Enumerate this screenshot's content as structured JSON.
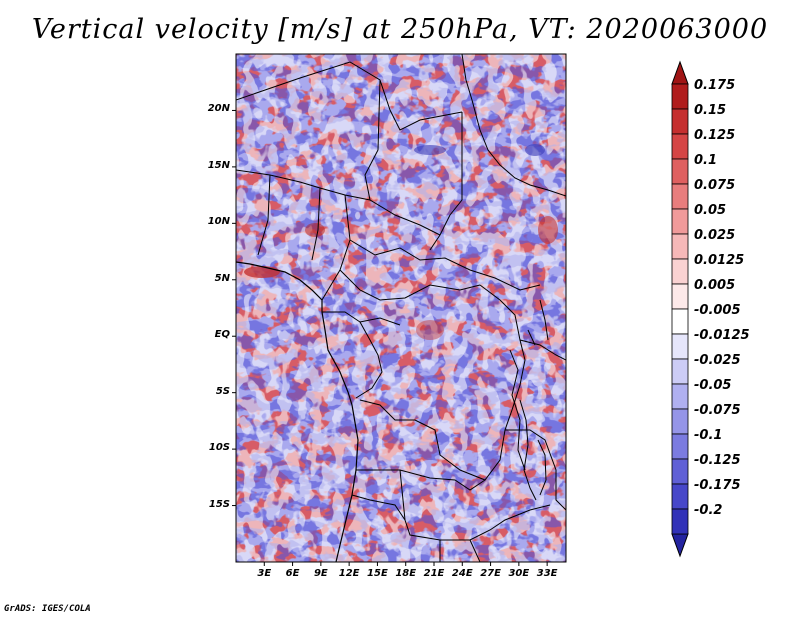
{
  "title": "Vertical velocity [m/s] at 250hPa, VT: 2020063000",
  "credit": "GrADS: IGES/COLA",
  "map": {
    "lon_range": [
      0,
      35
    ],
    "lat_range": [
      -20,
      25
    ],
    "lat_ticks": [
      {
        "value": 20,
        "label": "20N"
      },
      {
        "value": 15,
        "label": "15N"
      },
      {
        "value": 10,
        "label": "10N"
      },
      {
        "value": 5,
        "label": "5N"
      },
      {
        "value": 0,
        "label": "EQ"
      },
      {
        "value": -5,
        "label": "5S"
      },
      {
        "value": -10,
        "label": "10S"
      },
      {
        "value": -15,
        "label": "15S"
      }
    ],
    "lon_ticks": [
      {
        "value": 3,
        "label": "3E"
      },
      {
        "value": 6,
        "label": "6E"
      },
      {
        "value": 9,
        "label": "9E"
      },
      {
        "value": 12,
        "label": "12E"
      },
      {
        "value": 15,
        "label": "15E"
      },
      {
        "value": 18,
        "label": "18E"
      },
      {
        "value": 21,
        "label": "21E"
      },
      {
        "value": 24,
        "label": "24E"
      },
      {
        "value": 27,
        "label": "27E"
      },
      {
        "value": 30,
        "label": "30E"
      },
      {
        "value": 33,
        "label": "33E"
      }
    ]
  },
  "colorbar": {
    "levels": [
      {
        "label": "0.175",
        "color": "#b01c1c"
      },
      {
        "label": "0.15",
        "color": "#c52f2f"
      },
      {
        "label": "0.125",
        "color": "#d54545"
      },
      {
        "label": "0.1",
        "color": "#df6060"
      },
      {
        "label": "0.075",
        "color": "#e87d7d"
      },
      {
        "label": "0.05",
        "color": "#f09a9a"
      },
      {
        "label": "0.025",
        "color": "#f6b8b8"
      },
      {
        "label": "0.0125",
        "color": "#fad2d2"
      },
      {
        "label": "0.005",
        "color": "#fde9e9"
      },
      {
        "label": "-0.005",
        "color": "#ffffff"
      },
      {
        "label": "-0.0125",
        "color": "#e6e6fb"
      },
      {
        "label": "-0.025",
        "color": "#ccccf6"
      },
      {
        "label": "-0.05",
        "color": "#b0b0f0"
      },
      {
        "label": "-0.075",
        "color": "#9595e8"
      },
      {
        "label": "-0.1",
        "color": "#7b7be0"
      },
      {
        "label": "-0.125",
        "color": "#6060d6"
      },
      {
        "label": "-0.175",
        "color": "#4747c9"
      },
      {
        "label": "-0.2",
        "color": "#3232b8"
      }
    ],
    "top_color": "#a01515",
    "bottom_color": "#2424a0"
  }
}
